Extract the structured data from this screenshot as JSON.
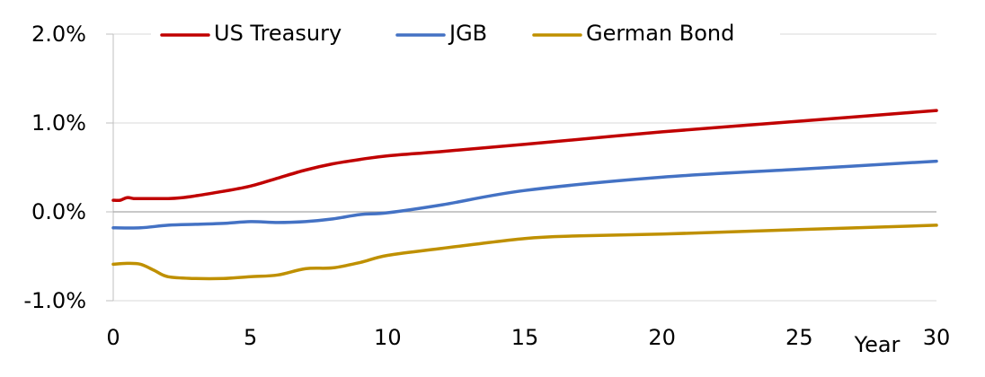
{
  "chart_data": {
    "type": "line",
    "title": "",
    "xlabel": "Year",
    "ylabel": "",
    "xlim": [
      0,
      30
    ],
    "ylim": [
      -1.0,
      2.0
    ],
    "x_ticks": [
      0,
      5,
      10,
      15,
      20,
      25,
      30
    ],
    "x_tick_labels": [
      "0",
      "5",
      "10",
      "15",
      "20",
      "25",
      "30"
    ],
    "y_ticks": [
      2.0,
      1.0,
      0.0,
      -1.0
    ],
    "y_tick_labels": [
      "2.0%",
      "1.0%",
      "0.0%",
      "-1.0%"
    ],
    "grid": "horizontal",
    "legend_position": "top",
    "series": [
      {
        "name": "US Treasury",
        "color": "#c00000",
        "points": [
          [
            0,
            0.13
          ],
          [
            0.25,
            0.13
          ],
          [
            0.5,
            0.16
          ],
          [
            0.75,
            0.15
          ],
          [
            1,
            0.15
          ],
          [
            2,
            0.15
          ],
          [
            2.5,
            0.16
          ],
          [
            3,
            0.18
          ],
          [
            4,
            0.23
          ],
          [
            5,
            0.29
          ],
          [
            6,
            0.38
          ],
          [
            7,
            0.47
          ],
          [
            8,
            0.54
          ],
          [
            9,
            0.59
          ],
          [
            10,
            0.63
          ],
          [
            12,
            0.68
          ],
          [
            15,
            0.76
          ],
          [
            20,
            0.9
          ],
          [
            25,
            1.02
          ],
          [
            30,
            1.14
          ]
        ]
      },
      {
        "name": "JGB",
        "color": "#4472c4",
        "points": [
          [
            0,
            -0.18
          ],
          [
            1,
            -0.18
          ],
          [
            2,
            -0.15
          ],
          [
            3,
            -0.14
          ],
          [
            4,
            -0.13
          ],
          [
            5,
            -0.11
          ],
          [
            6,
            -0.12
          ],
          [
            7,
            -0.11
          ],
          [
            8,
            -0.08
          ],
          [
            9,
            -0.03
          ],
          [
            10,
            -0.01
          ],
          [
            12,
            0.08
          ],
          [
            15,
            0.24
          ],
          [
            20,
            0.39
          ],
          [
            25,
            0.48
          ],
          [
            30,
            0.57
          ]
        ]
      },
      {
        "name": "German Bond",
        "color": "#bf9000",
        "points": [
          [
            0,
            -0.59
          ],
          [
            0.5,
            -0.58
          ],
          [
            1,
            -0.59
          ],
          [
            1.5,
            -0.66
          ],
          [
            2,
            -0.73
          ],
          [
            3,
            -0.75
          ],
          [
            4,
            -0.75
          ],
          [
            5,
            -0.73
          ],
          [
            6,
            -0.71
          ],
          [
            7,
            -0.64
          ],
          [
            8,
            -0.63
          ],
          [
            9,
            -0.57
          ],
          [
            10,
            -0.49
          ],
          [
            12,
            -0.41
          ],
          [
            15,
            -0.3
          ],
          [
            17,
            -0.27
          ],
          [
            20,
            -0.25
          ],
          [
            25,
            -0.2
          ],
          [
            30,
            -0.15
          ]
        ]
      }
    ]
  }
}
